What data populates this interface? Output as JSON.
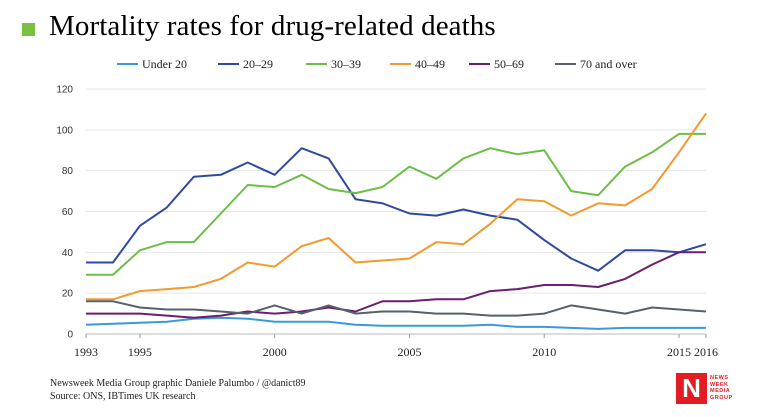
{
  "title": "Mortality rates for drug-related deaths",
  "accent_color": "#7ac143",
  "footer": {
    "credit": "Newsweek Media Group graphic Daniele Palumbo / @danict89",
    "source": "Source: ONS, IBTimes UK research"
  },
  "logo": {
    "letter": "N",
    "lines": [
      "NEWS",
      "WEEK",
      "MEDIA",
      "GROUP"
    ]
  },
  "chart_data": {
    "type": "line",
    "x": [
      1993,
      1994,
      1995,
      1996,
      1997,
      1998,
      1999,
      2000,
      2001,
      2002,
      2003,
      2004,
      2005,
      2006,
      2007,
      2008,
      2009,
      2010,
      2011,
      2012,
      2013,
      2014,
      2015,
      2016
    ],
    "xticks": [
      1993,
      1995,
      2000,
      2005,
      2010,
      2015,
      2016
    ],
    "xlim": [
      1993,
      2016
    ],
    "ylim": [
      0,
      120
    ],
    "yticks": [
      0,
      20,
      40,
      60,
      80,
      100,
      120
    ],
    "grid": true,
    "legend": "top",
    "series": [
      {
        "name": "Under 20",
        "color": "#3a9ad9",
        "values": [
          4.5,
          5,
          5.5,
          6,
          7.5,
          8,
          7.5,
          6,
          6,
          6,
          4.5,
          4,
          4,
          4,
          4,
          4.5,
          3.5,
          3.5,
          3,
          2.5,
          3,
          3,
          3,
          3
        ]
      },
      {
        "name": "20–29",
        "color": "#2e4a9e",
        "values": [
          35,
          35,
          53,
          62,
          77,
          78,
          84,
          78,
          91,
          86,
          66,
          64,
          59,
          58,
          61,
          58,
          56,
          46,
          37,
          31,
          41,
          41,
          40,
          44
        ]
      },
      {
        "name": "30–39",
        "color": "#6cbe45",
        "values": [
          29,
          29,
          41,
          45,
          45,
          59,
          73,
          72,
          78,
          71,
          69,
          72,
          82,
          76,
          86,
          91,
          88,
          90,
          70,
          68,
          82,
          89,
          98,
          98
        ]
      },
      {
        "name": "40–49",
        "color": "#f29a2e",
        "values": [
          17,
          17,
          21,
          22,
          23,
          27,
          35,
          33,
          43,
          47,
          35,
          36,
          37,
          45,
          44,
          54,
          66,
          65,
          58,
          64,
          63,
          71,
          89,
          108
        ]
      },
      {
        "name": "50–69",
        "color": "#6b1d6e",
        "values": [
          10,
          10,
          10,
          9,
          8,
          9,
          11,
          10,
          11,
          13,
          11,
          16,
          16,
          17,
          17,
          21,
          22,
          24,
          24,
          23,
          27,
          34,
          40,
          40
        ]
      },
      {
        "name": "70 and over",
        "color": "#55616b",
        "values": [
          16,
          16,
          13,
          12,
          12,
          11,
          10,
          14,
          10,
          14,
          10,
          11,
          11,
          10,
          10,
          9,
          9,
          10,
          14,
          12,
          10,
          13,
          12,
          11
        ]
      }
    ]
  }
}
